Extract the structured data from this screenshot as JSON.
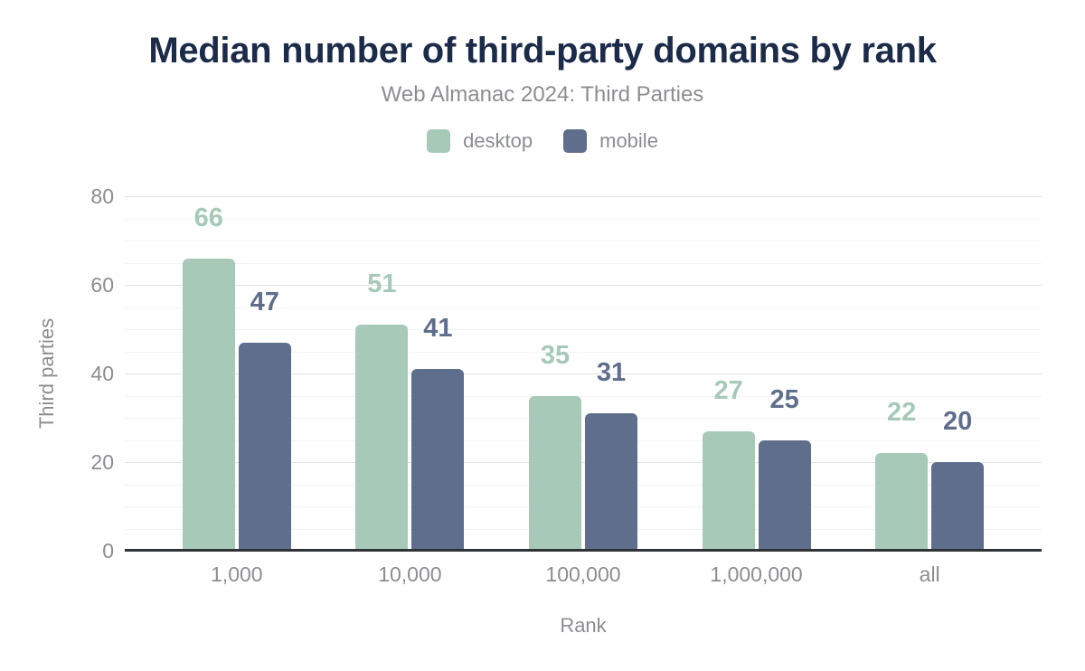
{
  "colors": {
    "background": "#ffffff",
    "title_text": "#1b2b49",
    "muted_text": "#8b8d90",
    "axis_line": "#303336",
    "grid_major": "#e2e2e7",
    "grid_minor": "#f3f3f6"
  },
  "chart_data": {
    "type": "bar",
    "title": "Median number of third-party domains by rank",
    "subtitle": "Web Almanac 2024: Third Parties",
    "xlabel": "Rank",
    "ylabel": "Third parties",
    "categories": [
      "1,000",
      "10,000",
      "100,000",
      "1,000,000",
      "all"
    ],
    "series": [
      {
        "name": "desktop",
        "color": "#a7c9b8",
        "values": [
          66,
          51,
          35,
          27,
          22
        ]
      },
      {
        "name": "mobile",
        "color": "#5f6e8c",
        "values": [
          47,
          41,
          31,
          25,
          20
        ]
      }
    ],
    "ylim": [
      0,
      80
    ],
    "yticks": [
      0,
      20,
      40,
      60,
      80
    ],
    "minor_grid_step": 5,
    "grid": true,
    "legend_position": "top",
    "value_labels": true
  }
}
